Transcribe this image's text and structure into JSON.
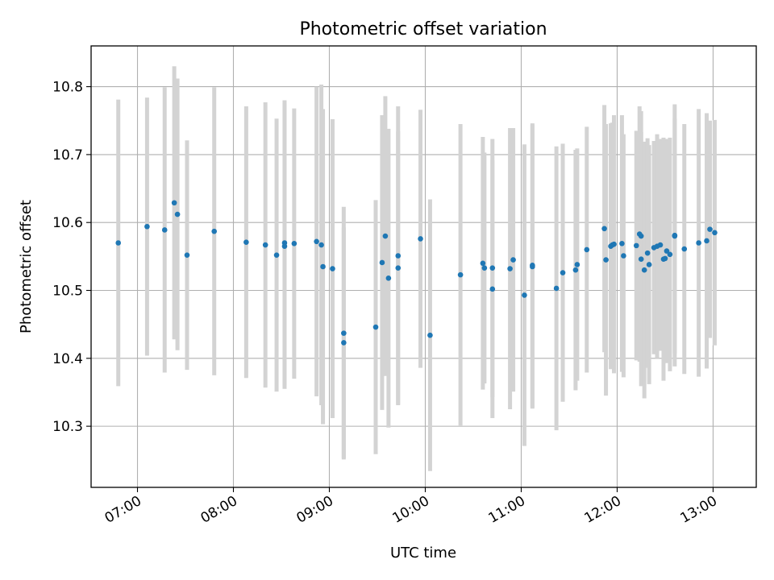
{
  "chart_data": {
    "type": "scatter",
    "title": "Photometric offset variation",
    "xlabel": "UTC time",
    "ylabel": "Photometric offset",
    "x_ticks": [
      "07:00",
      "08:00",
      "09:00",
      "10:00",
      "11:00",
      "12:00",
      "13:00"
    ],
    "y_ticks": [
      "10.3",
      "10.4",
      "10.5",
      "10.6",
      "10.7",
      "10.8"
    ],
    "xlim": [
      "06:31",
      "13:27"
    ],
    "ylim": [
      10.21,
      10.86
    ],
    "grid": true,
    "colors": {
      "points": "#1f77b4",
      "errorbars": "#d3d3d3",
      "grid": "#b0b0b0"
    },
    "series": [
      {
        "x": [
          "06:48",
          "07:06",
          "07:17",
          "07:23",
          "07:25",
          "07:31",
          "07:48",
          "08:08",
          "08:20",
          "08:27",
          "08:32",
          "08:32",
          "08:38",
          "08:52",
          "08:55",
          "08:56",
          "09:02",
          "09:09",
          "09:09",
          "09:29",
          "09:33",
          "09:35",
          "09:37",
          "09:43",
          "09:43",
          "09:57",
          "10:03",
          "10:22",
          "10:36",
          "10:37",
          "10:42",
          "10:42",
          "10:53",
          "10:55",
          "11:02",
          "11:07",
          "11:07",
          "11:22",
          "11:26",
          "11:34",
          "11:35",
          "11:41",
          "11:52",
          "11:53",
          "11:56",
          "11:57",
          "11:58",
          "12:03",
          "12:04",
          "12:12",
          "12:14",
          "12:15",
          "12:15",
          "12:17",
          "12:19",
          "12:20",
          "12:23",
          "12:25",
          "12:27",
          "12:29",
          "12:30",
          "12:31",
          "12:33",
          "12:36",
          "12:36",
          "12:42",
          "12:51",
          "12:56",
          "12:58",
          "13:01"
        ],
        "y": [
          10.57,
          10.594,
          10.589,
          10.629,
          10.612,
          10.552,
          10.587,
          10.571,
          10.567,
          10.552,
          10.57,
          10.565,
          10.569,
          10.572,
          10.567,
          10.535,
          10.532,
          10.437,
          10.423,
          10.446,
          10.541,
          10.58,
          10.518,
          10.551,
          10.533,
          10.576,
          10.434,
          10.523,
          10.54,
          10.533,
          10.533,
          10.502,
          10.532,
          10.545,
          10.493,
          10.537,
          10.535,
          10.503,
          10.526,
          10.53,
          10.538,
          10.56,
          10.591,
          10.545,
          10.565,
          10.567,
          10.568,
          10.569,
          10.551,
          10.566,
          10.583,
          10.58,
          10.546,
          10.53,
          10.555,
          10.538,
          10.563,
          10.565,
          10.567,
          10.546,
          10.547,
          10.558,
          10.553,
          10.581,
          10.58,
          10.561,
          10.57,
          10.573,
          10.59,
          10.585
        ],
        "err": [
          0.211,
          0.19,
          0.21,
          0.201,
          0.2,
          0.169,
          0.212,
          0.2,
          0.21,
          0.201,
          0.21,
          0.21,
          0.199,
          0.228,
          0.236,
          0.232,
          0.22,
          0.186,
          0.17,
          0.187,
          0.217,
          0.206,
          0.22,
          0.22,
          0.201,
          0.19,
          0.2,
          0.222,
          0.186,
          0.17,
          0.19,
          0.19,
          0.207,
          0.194,
          0.222,
          0.209,
          0.209,
          0.209,
          0.19,
          0.177,
          0.171,
          0.181,
          0.182,
          0.2,
          0.181,
          0.18,
          0.19,
          0.189,
          0.179,
          0.169,
          0.188,
          0.184,
          0.187,
          0.189,
          0.169,
          0.176,
          0.157,
          0.165,
          0.156,
          0.179,
          0.148,
          0.165,
          0.172,
          0.193,
          0.173,
          0.184,
          0.197,
          0.188,
          0.16,
          0.166
        ]
      }
    ]
  }
}
